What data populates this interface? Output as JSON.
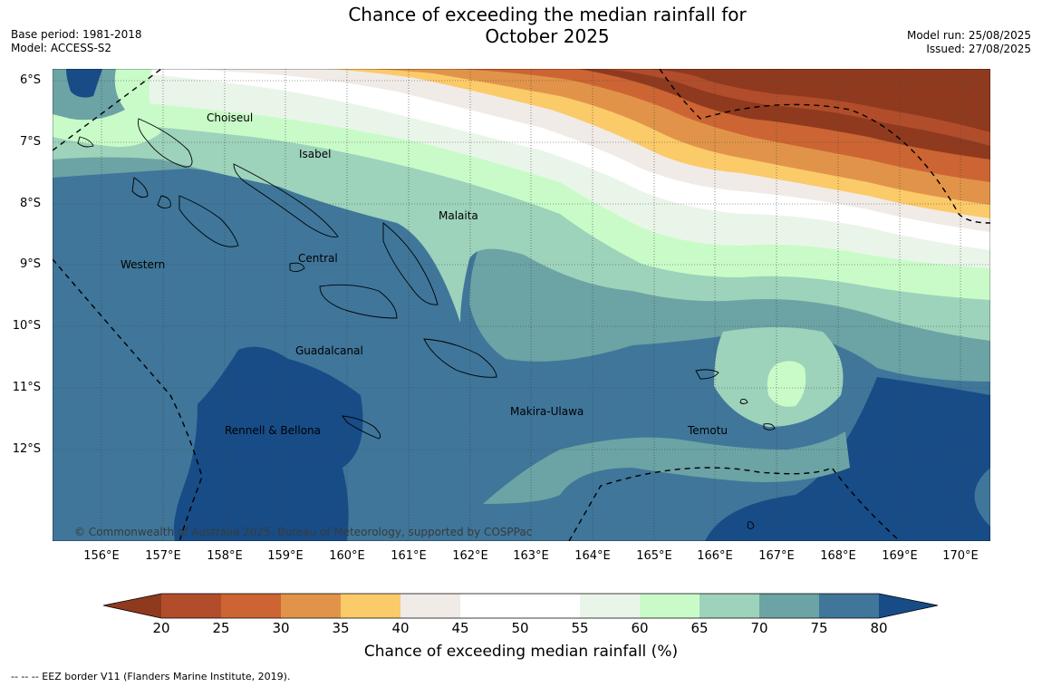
{
  "title": {
    "line1": "Chance of exceeding the median rainfall for",
    "line2": "October 2025"
  },
  "meta": {
    "base_period": "Base period: 1981-2018",
    "model": "Model: ACCESS-S2",
    "model_run": "Model run: 25/08/2025",
    "issued": "Issued: 27/08/2025"
  },
  "lat_labels": [
    "6°S",
    "7°S",
    "8°S",
    "9°S",
    "10°S",
    "11°S",
    "12°S"
  ],
  "lon_labels": [
    "156°E",
    "157°E",
    "158°E",
    "159°E",
    "160°E",
    "161°E",
    "162°E",
    "163°E",
    "164°E",
    "165°E",
    "166°E",
    "167°E",
    "168°E",
    "169°E",
    "170°E"
  ],
  "province_labels": [
    "Choiseul",
    "Isabel",
    "Malaita",
    "Western",
    "Central",
    "Guadalcanal",
    "Makira-Ulawa",
    "Rennell & Bellona",
    "Temotu"
  ],
  "copyright": "© Commonwealth of Australia 2025, Bureau of Meteorology, supported by COSPPac",
  "colorbar": {
    "title": "Chance of exceeding median rainfall (%)",
    "ticks": [
      "20",
      "25",
      "30",
      "35",
      "40",
      "45",
      "50",
      "55",
      "60",
      "65",
      "70",
      "75",
      "80"
    ],
    "colors": [
      "#8f3a1e",
      "#b14d2b",
      "#cc6533",
      "#e19449",
      "#fbca69",
      "#f0ebe7",
      "#ffffff",
      "#ffffff",
      "#eaf5e9",
      "#c9fbc8",
      "#9dd2bb",
      "#6ca3a4",
      "#3f769a",
      "#174c87"
    ]
  },
  "eez_note": "--  --  -- EEZ border V11 (Flanders Marine Institute, 2019)."
}
